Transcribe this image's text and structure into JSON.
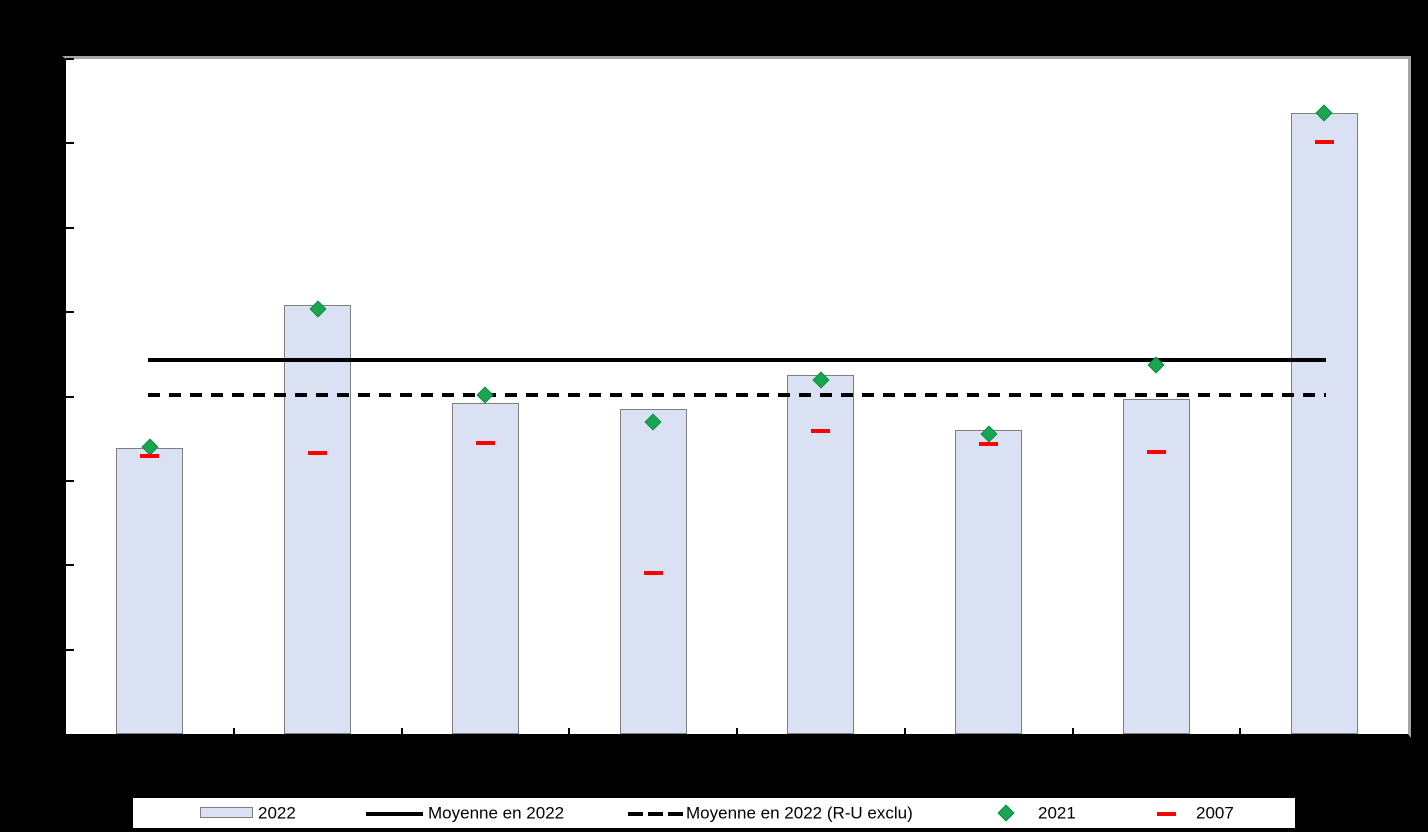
{
  "page": {
    "background_color": "#000000",
    "plot_background_color": "#ffffff",
    "plot_border_gray": "#a6a6a6",
    "axis_color": "#000000"
  },
  "colors": {
    "bar_fill": "#d9e1f2",
    "bar_border": "#7f7f7f",
    "marker_2021_fill": "#18a650",
    "marker_2021_border": "#0e8c42",
    "marker_2007": "#ff0000",
    "line_solid": "#000000",
    "line_dashed": "#000000"
  },
  "chart_data": {
    "type": "bar",
    "title": "",
    "xlabel": "",
    "ylabel": "",
    "categories": [
      "",
      "",
      "",
      "",
      "",
      "",
      "",
      ""
    ],
    "n_categories": 8,
    "axis_tick_labels_visible": false,
    "ylim": [
      0,
      8
    ],
    "y_tick_step": 1,
    "grid": false,
    "legend_position": "bottom",
    "series": [
      {
        "name": "2022",
        "type": "bar",
        "values": [
          3.39,
          5.08,
          3.92,
          3.85,
          4.25,
          3.6,
          3.97,
          7.36
        ]
      },
      {
        "name": "2021",
        "type": "scatter",
        "marker": "diamond",
        "values": [
          3.4,
          5.04,
          4.02,
          3.7,
          4.19,
          3.56,
          4.37,
          7.36
        ]
      },
      {
        "name": "2007",
        "type": "scatter",
        "marker": "dash",
        "values": [
          3.29,
          3.33,
          3.45,
          1.91,
          3.59,
          3.44,
          3.34,
          7.02
        ]
      },
      {
        "name": "Moyenne en 2022",
        "type": "hline",
        "style": "solid",
        "value": 4.43
      },
      {
        "name": "Moyenne en 2022 (R-U exclu)",
        "type": "hline",
        "style": "dashed",
        "value": 4.02
      }
    ]
  },
  "legend": {
    "items": [
      {
        "label": "2022",
        "swatch": "bar"
      },
      {
        "label": "Moyenne en 2022",
        "swatch": "solid-line"
      },
      {
        "label": "Moyenne en 2022 (R-U exclu)",
        "swatch": "dashed-line"
      },
      {
        "label": "2021",
        "swatch": "diamond"
      },
      {
        "label": "2007",
        "swatch": "dash"
      }
    ]
  }
}
